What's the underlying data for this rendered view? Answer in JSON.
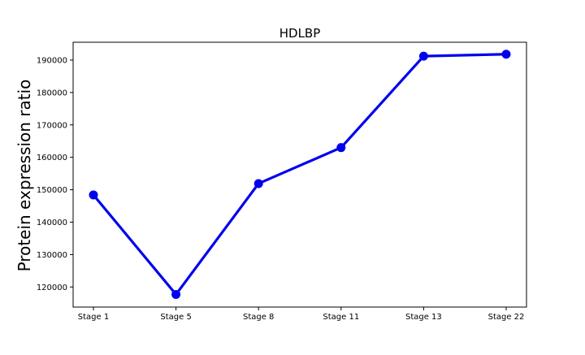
{
  "chart_data": {
    "type": "line",
    "title": "HDLBP",
    "xlabel": "",
    "ylabel": "Protein expression ratio",
    "categories": [
      "Stage 1",
      "Stage 5",
      "Stage 8",
      "Stage 11",
      "Stage 13",
      "Stage 22"
    ],
    "series": [
      {
        "values": [
          148400,
          117700,
          151900,
          163000,
          191200,
          191800
        ],
        "color": "#0000ee",
        "marker": "circle"
      }
    ],
    "ylim": [
      113800,
      195500
    ],
    "yticks": [
      120000,
      130000,
      140000,
      150000,
      160000,
      170000,
      180000,
      190000
    ],
    "grid": false,
    "legend": "none"
  }
}
